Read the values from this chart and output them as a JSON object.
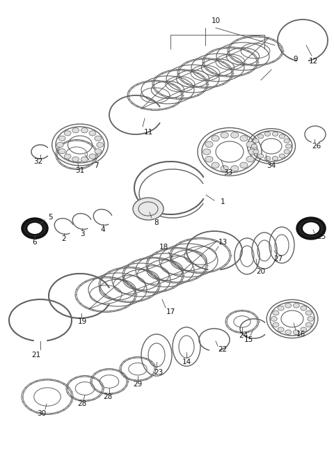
{
  "bg_color": "#ffffff",
  "line_color": "#606060",
  "dark_color": "#111111",
  "fig_width": 4.8,
  "fig_height": 6.55,
  "dpi": 100
}
